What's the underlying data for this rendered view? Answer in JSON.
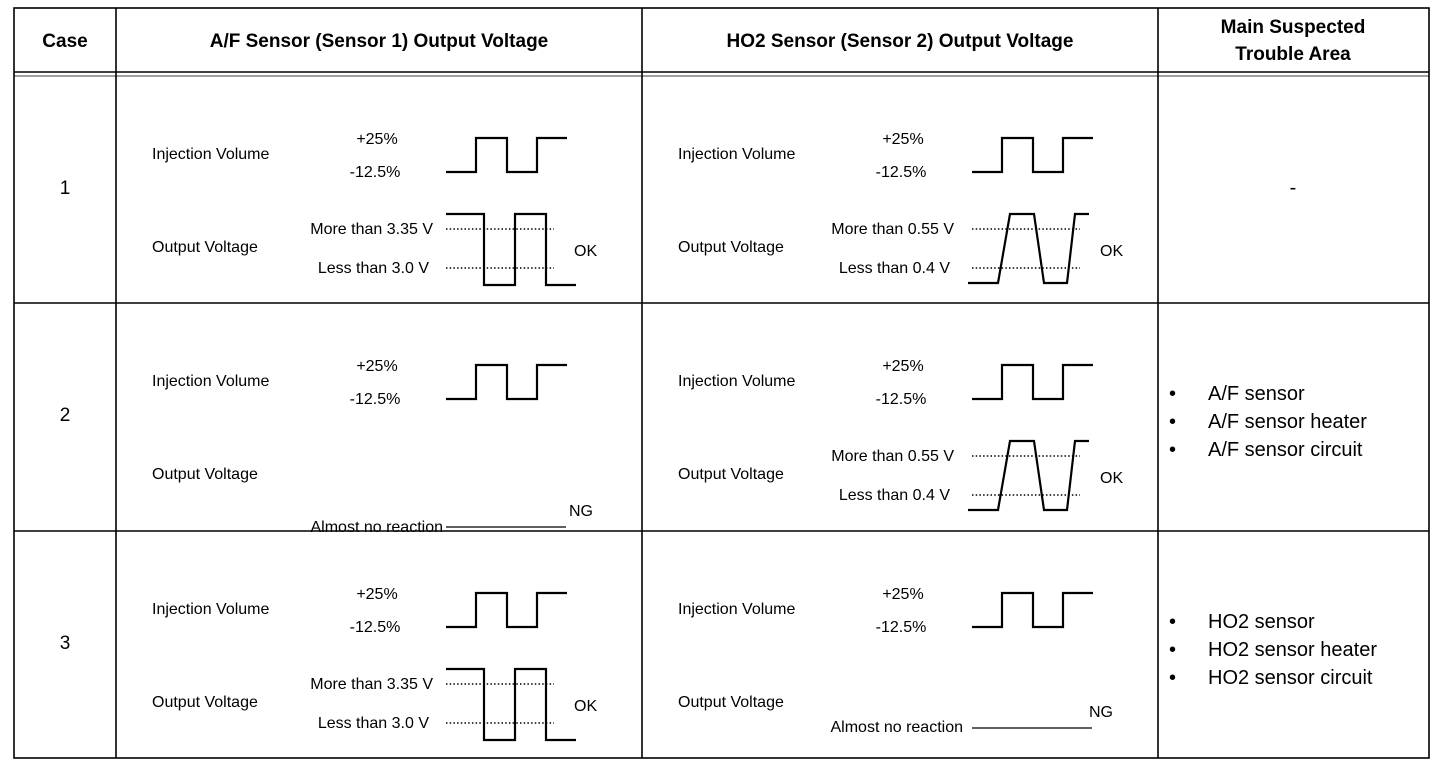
{
  "headers": {
    "case": "Case",
    "af": "A/F Sensor (Sensor 1) Output Voltage",
    "ho2": "HO2 Sensor (Sensor 2) Output Voltage",
    "trouble_line1": "Main Suspected",
    "trouble_line2": "Trouble Area"
  },
  "cases": [
    {
      "number": "1",
      "af": {
        "injection_label": "Injection Volume",
        "injection_high": "+25%",
        "injection_low": "-12.5%",
        "output_label": "Output Voltage",
        "reaction": "switching",
        "high_label": "More than 3.35 V",
        "low_label": "Less than 3.0 V",
        "result": "OK"
      },
      "ho2": {
        "injection_label": "Injection Volume",
        "injection_high": "+25%",
        "injection_low": "-12.5%",
        "output_label": "Output Voltage",
        "reaction": "switching",
        "high_label": "More than 0.55 V",
        "low_label": "Less than 0.4 V",
        "result": "OK"
      },
      "trouble_dash": "-",
      "trouble_items": []
    },
    {
      "number": "2",
      "af": {
        "injection_label": "Injection Volume",
        "injection_high": "+25%",
        "injection_low": "-12.5%",
        "output_label": "Output Voltage",
        "reaction": "none",
        "none_label": "Almost no reaction",
        "result": "NG"
      },
      "ho2": {
        "injection_label": "Injection Volume",
        "injection_high": "+25%",
        "injection_low": "-12.5%",
        "output_label": "Output Voltage",
        "reaction": "switching",
        "high_label": "More than 0.55 V",
        "low_label": "Less than 0.4 V",
        "result": "OK"
      },
      "trouble_items": [
        "A/F sensor",
        "A/F sensor heater",
        "A/F sensor circuit"
      ]
    },
    {
      "number": "3",
      "af": {
        "injection_label": "Injection Volume",
        "injection_high": "+25%",
        "injection_low": "-12.5%",
        "output_label": "Output Voltage",
        "reaction": "switching",
        "high_label": "More than 3.35 V",
        "low_label": "Less than 3.0 V",
        "result": "OK"
      },
      "ho2": {
        "injection_label": "Injection Volume",
        "injection_high": "+25%",
        "injection_low": "-12.5%",
        "output_label": "Output Voltage",
        "reaction": "none",
        "none_label": "Almost no reaction",
        "result": "NG"
      },
      "trouble_items": [
        "HO2 sensor",
        "HO2 sensor heater",
        "HO2 sensor circuit"
      ]
    }
  ],
  "bullet": "•"
}
